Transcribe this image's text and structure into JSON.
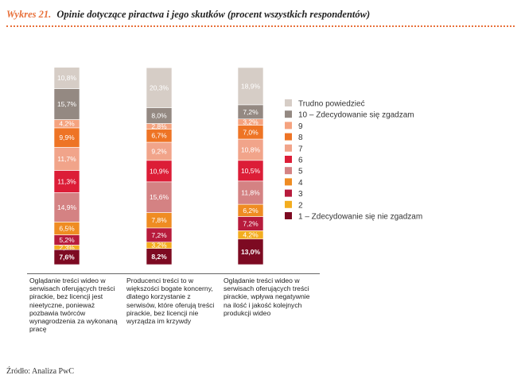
{
  "title": {
    "number": "Wykres 21.",
    "text": "Opinie dotyczące piractwa i jego skutków (procent wszystkich respondentów)"
  },
  "source": "Źródło: Analiza PwC",
  "colors": {
    "c1": "#7d0a22",
    "c2": "#f3ad1f",
    "c3": "#b71b3c",
    "c4": "#ef8c22",
    "c5": "#d48283",
    "c6": "#dc1d37",
    "c7": "#f1a48a",
    "c8": "#ee7425",
    "c9": "#f5a37f",
    "c10": "#948982",
    "ct": "#d6cdc6"
  },
  "chart_data": {
    "type": "bar",
    "stacked": true,
    "orientation": "vertical",
    "categories": [
      "Oglądanie treści wideo w serwisach oferujących treści pirackie, bez licencji jest nieetyczne, ponieważ pozbawia twórców wynagrodzenia za wykonaną pracę",
      "Producenci treści to w większości bogate koncerny, dlatego korzystanie z serwisów, które oferują treści pirackie, bez licencji nie wyrządza im krzywdy",
      "Oglądanie treści wideo w serwisach oferujących treści pirackie, wpływa negatywnie na ilość i jakość kolejnych produkcji wideo"
    ],
    "series": [
      {
        "name": "1 – Zdecydowanie się nie zgadzam",
        "color_key": "c1",
        "values": [
          7.6,
          8.2,
          13.0
        ],
        "labels": [
          "7,6%",
          "8,2%",
          "13,0%"
        ]
      },
      {
        "name": "2",
        "color_key": "c2",
        "values": [
          2.3,
          3.2,
          4.2
        ],
        "labels": [
          "2,3%",
          "3,2%",
          "4,2%"
        ]
      },
      {
        "name": "3",
        "color_key": "c3",
        "values": [
          5.2,
          7.2,
          7.2
        ],
        "labels": [
          "5,2%",
          "7,2%",
          "7,2%"
        ]
      },
      {
        "name": "4",
        "color_key": "c4",
        "values": [
          6.5,
          7.8,
          6.2
        ],
        "labels": [
          "6,5%",
          "7,8%",
          "6,2%"
        ]
      },
      {
        "name": "5",
        "color_key": "c5",
        "values": [
          14.9,
          15.6,
          11.8
        ],
        "labels": [
          "14,9%",
          "15,6%",
          "11,8%"
        ]
      },
      {
        "name": "6",
        "color_key": "c6",
        "values": [
          11.3,
          10.9,
          10.5
        ],
        "labels": [
          "11,3%",
          "10,9%",
          "10,5%"
        ]
      },
      {
        "name": "7",
        "color_key": "c7",
        "values": [
          11.7,
          9.2,
          10.8
        ],
        "labels": [
          "11,7%",
          "9,2%",
          "10,8%"
        ]
      },
      {
        "name": "8",
        "color_key": "c8",
        "values": [
          9.9,
          6.7,
          7.0
        ],
        "labels": [
          "9,9%",
          "6,7%",
          "7,0%"
        ]
      },
      {
        "name": "9",
        "color_key": "c9",
        "values": [
          4.2,
          2.8,
          3.2
        ],
        "labels": [
          "4,2%",
          "2,8%",
          "3,2%"
        ]
      },
      {
        "name": "10 – Zdecydowanie się zgadzam",
        "color_key": "c10",
        "values": [
          15.7,
          8.0,
          7.2
        ],
        "labels": [
          "15,7%",
          "8,0%",
          "7,2%"
        ]
      },
      {
        "name": "Trudno powiedzieć",
        "color_key": "ct",
        "values": [
          10.8,
          20.3,
          18.9
        ],
        "labels": [
          "10,8%",
          "20,3%",
          "18,9%"
        ]
      }
    ],
    "legend_order": [
      "Trudno powiedzieć",
      "10 – Zdecydowanie się zgadzam",
      "9",
      "8",
      "7",
      "6",
      "5",
      "4",
      "3",
      "2",
      "1 – Zdecydowanie się nie zgadzam"
    ],
    "legend_position": "right",
    "ylim": [
      0,
      100
    ],
    "grid": false
  }
}
